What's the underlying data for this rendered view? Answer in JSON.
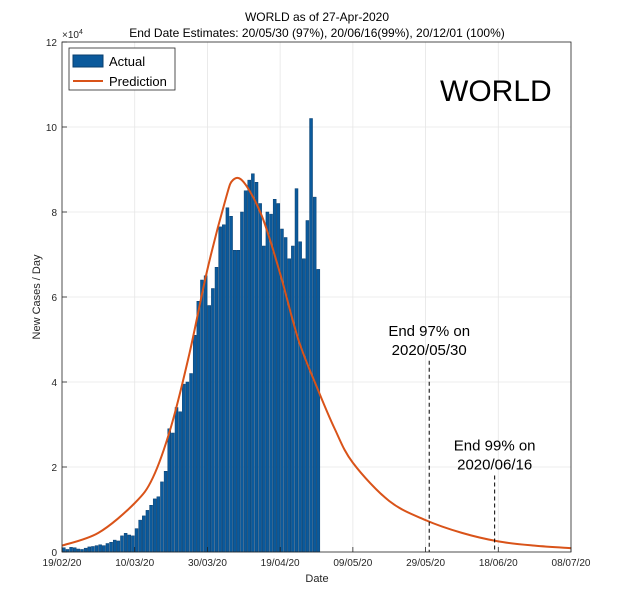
{
  "chart_data": {
    "type": "bar",
    "title": "WORLD as of 27-Apr-2020",
    "subtitle": "End Date Estimates: 20/05/30 (97%), 20/06/16(99%), 20/12/01 (100%)",
    "xlabel": "Date",
    "ylabel": "New Cases / Day",
    "y_exponent_label": "×10",
    "y_exponent_power": "4",
    "big_label": "WORLD",
    "ylim": [
      0,
      120000
    ],
    "xlim": [
      "2020-02-19",
      "2020-07-08"
    ],
    "x_ticks": [
      "19/02/20",
      "10/03/20",
      "30/03/20",
      "19/04/20",
      "09/05/20",
      "29/05/20",
      "18/06/20",
      "08/07/20"
    ],
    "y_ticks": [
      "0",
      "2",
      "4",
      "6",
      "8",
      "10",
      "12"
    ],
    "grid": true,
    "legend_position": "top-left",
    "colors": {
      "actual": "#0b5a9c",
      "actual_edge": "#0a3f6e",
      "prediction": "#d95319"
    },
    "series": [
      {
        "name": "Actual",
        "type": "bar",
        "start_date": "2020-02-19",
        "values": [
          1000,
          600,
          1100,
          1000,
          700,
          600,
          900,
          1200,
          1300,
          1500,
          1700,
          1500,
          2000,
          2300,
          2800,
          2600,
          3800,
          4400,
          4000,
          3800,
          5500,
          7500,
          8500,
          9800,
          11000,
          12500,
          13000,
          16500,
          19000,
          29000,
          28000,
          34000,
          33000,
          39500,
          40000,
          42000,
          51000,
          59000,
          64000,
          65000,
          58000,
          62000,
          67000,
          76500,
          77000,
          81000,
          79000,
          71000,
          71000,
          80000,
          85000,
          87500,
          89000,
          87000,
          82000,
          72000,
          80000,
          79500,
          83000,
          82000,
          76000,
          74000,
          69000,
          72000,
          85500,
          73000,
          69000,
          78000,
          102000,
          83500,
          66500
        ]
      },
      {
        "name": "Prediction",
        "type": "line",
        "dates": [
          "2020-02-19",
          "2020-02-29",
          "2020-03-10",
          "2020-03-15",
          "2020-03-20",
          "2020-03-25",
          "2020-03-30",
          "2020-04-04",
          "2020-04-06",
          "2020-04-09",
          "2020-04-14",
          "2020-04-19",
          "2020-04-24",
          "2020-04-29",
          "2020-05-04",
          "2020-05-09",
          "2020-05-19",
          "2020-05-29",
          "2020-06-08",
          "2020-06-18",
          "2020-06-28",
          "2020-07-08"
        ],
        "values": [
          1500,
          4500,
          11500,
          17500,
          29500,
          46500,
          66500,
          83000,
          87500,
          87000,
          79000,
          65500,
          50000,
          39000,
          29000,
          21000,
          12000,
          7500,
          4500,
          2500,
          1500,
          900
        ]
      }
    ],
    "annotations": [
      {
        "line1": "End 97% on",
        "line2": "2020/05/30",
        "date": "2020-05-30",
        "top": 45000
      },
      {
        "line1": "End 99% on",
        "line2": "2020/06/16",
        "date": "2020-06-17",
        "top": 18000
      }
    ]
  }
}
